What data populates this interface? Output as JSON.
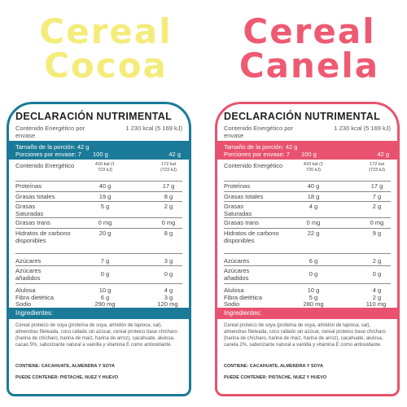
{
  "cocoa": {
    "title_line1": "Cereal",
    "title_line2": "Cocoa",
    "heading": "DECLARACIÓN NUTRIMENTAL",
    "energy_label": "Contenido Energético por envase",
    "energy_value": "1 230 kcal (5 169 kJ)",
    "portion_size": "Tamaño de la porción: 42 g",
    "portions": "Porciones por envase: 7",
    "col1": "100 g",
    "col2": "42 g",
    "rows": [
      {
        "name": "Contenido Energético",
        "a": "410 kal (1 723 kJ)",
        "b": "172 kal (723 kJ)"
      },
      {
        "name": "Proteínas",
        "a": "40 g",
        "b": "17 g"
      },
      {
        "name": "Grasas totales",
        "a": "19 g",
        "b": "8 g"
      },
      {
        "name": "Grasas Saturadas",
        "a": "5 g",
        "b": "2 g"
      },
      {
        "name": "Grasas trans",
        "a": "0 mg",
        "b": "0 mg"
      },
      {
        "name": "Hidratos de carbono disponibles",
        "a": "20 g",
        "b": "8 g"
      },
      {
        "name": "Azúcares",
        "a": "7 g",
        "b": "3 g"
      },
      {
        "name": "Azúcares añadidos",
        "a": "0 g",
        "b": "0 g"
      },
      {
        "name": "Alulosa",
        "a": "10 g",
        "b": "4 g"
      },
      {
        "name": "Fibra dietética",
        "a": "6 g",
        "b": "3 g"
      },
      {
        "name": "Sodio",
        "a": "290 mg",
        "b": "120 mg"
      }
    ],
    "ingredients_label": "Ingredientes:",
    "ingredients": "Cereal proteico de soya (proteína de soya, almidón de tapioca, sal), almendras fileteada, coco rallado sin azúcar, cereal proteico base chícharo (harina de chícharo, harina de maíz, harina de arroz), cacahuate, alulosa, cacao 5%, saborizante natural a vainilla y vitamina E como antioxidante.",
    "contains": "CONTIENE: CACAHUATE, ALMENDRA Y SOYA",
    "may_contain": "PUEDE CONTENER: PISTACHE, NUEZ Y HUEVO"
  },
  "canela": {
    "title_line1": "Cereal",
    "title_line2": "Canela",
    "heading": "DECLARACIÓN NUTRIMENTAL",
    "energy_label": "Contenido Energético por envase",
    "energy_value": "1 230 kcal (5 169 kJ)",
    "portion_size": "Tamaño de la porción: 42 g",
    "portions": "Porciones por envase: 7",
    "col1": "100 g",
    "col2": "42 g",
    "rows": [
      {
        "name": "Contenido Energético",
        "a": "410 kal (1 720 kJ)",
        "b": "172 kal (723 kJ)"
      },
      {
        "name": "Proteínas",
        "a": "40 g",
        "b": "17 g"
      },
      {
        "name": "Grasas totales",
        "a": "18 g",
        "b": "7 g"
      },
      {
        "name": "Grasas Saturadas",
        "a": "4 g",
        "b": "2 g"
      },
      {
        "name": "Grasas trans",
        "a": "0 mg",
        "b": "0 mg"
      },
      {
        "name": "Hidratos de carbono disponibles",
        "a": "22 g",
        "b": "9 g"
      },
      {
        "name": "Azúcares",
        "a": "6 g",
        "b": "2 g"
      },
      {
        "name": "Azúcares añadidos",
        "a": "0 g",
        "b": "0 g"
      },
      {
        "name": "Alulosa",
        "a": "10 g",
        "b": "4 g"
      },
      {
        "name": "Fibra dietética",
        "a": "5 g",
        "b": "2 g"
      },
      {
        "name": "Sodio",
        "a": "280 mg",
        "b": "110 mg"
      }
    ],
    "ingredients_label": "Ingredientes:",
    "ingredients": "Cereal proteico de soya (proteína de soya, almidón de tapioca, sal), almendras fileteada, coco rallado sin azúcar, cereal proteico base chícharo (harina de chícharo, harina de maíz, harina de arroz), cacahuate, alulosa, canela 2%, saborizante natural a vainilla y vitamina E como antioxidante.",
    "contains": "CONTIENE: CACAHUATE, ALMENDRA Y SOYA",
    "may_contain": "PUEDE CONTENER: PISTACHE, NUEZ Y HUEVO"
  },
  "colors": {
    "cocoa_title": "#f4ec7a",
    "cocoa_accent": "#1b7a97",
    "canela_title": "#ee5a72",
    "canela_accent": "#e8526e"
  }
}
